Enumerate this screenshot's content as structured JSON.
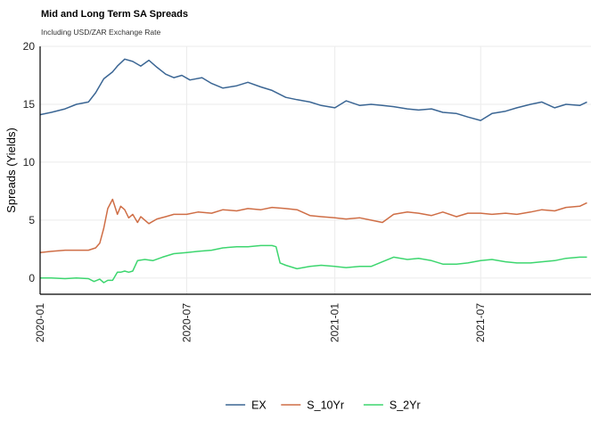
{
  "chart_data": {
    "type": "line",
    "title": "Mid and Long Term SA Spreads",
    "subtitle": "Including USD/ZAR Exchange Rate",
    "xlabel": "",
    "ylabel": "Spreads (Yields)",
    "xlim": [
      "2020-01-01",
      "2021-11-15"
    ],
    "ylim": [
      -1.4,
      20
    ],
    "x_ticks": [
      "2020-01",
      "2020-07",
      "2021-01",
      "2021-07"
    ],
    "y_ticks": [
      0,
      5,
      10,
      15,
      20
    ],
    "grid": true,
    "legend_position": "bottom",
    "series": [
      {
        "name": "EX",
        "color": "#3B6694",
        "x": [
          "2020-01-01",
          "2020-01-15",
          "2020-02-01",
          "2020-02-15",
          "2020-03-01",
          "2020-03-10",
          "2020-03-20",
          "2020-03-31",
          "2020-04-06",
          "2020-04-15",
          "2020-04-25",
          "2020-05-05",
          "2020-05-15",
          "2020-05-25",
          "2020-06-05",
          "2020-06-15",
          "2020-06-25",
          "2020-07-05",
          "2020-07-20",
          "2020-08-01",
          "2020-08-15",
          "2020-09-01",
          "2020-09-15",
          "2020-10-01",
          "2020-10-15",
          "2020-11-01",
          "2020-11-15",
          "2020-12-01",
          "2020-12-15",
          "2021-01-01",
          "2021-01-15",
          "2021-02-01",
          "2021-02-15",
          "2021-03-01",
          "2021-03-15",
          "2021-04-01",
          "2021-04-15",
          "2021-05-01",
          "2021-05-15",
          "2021-06-01",
          "2021-06-15",
          "2021-07-01",
          "2021-07-15",
          "2021-08-01",
          "2021-08-15",
          "2021-09-01",
          "2021-09-15",
          "2021-10-01",
          "2021-10-15",
          "2021-11-01",
          "2021-11-10"
        ],
        "values": [
          14.1,
          14.3,
          14.6,
          15.0,
          15.2,
          16.0,
          17.2,
          17.8,
          18.3,
          18.9,
          18.7,
          18.3,
          18.8,
          18.2,
          17.6,
          17.3,
          17.5,
          17.1,
          17.3,
          16.8,
          16.4,
          16.6,
          16.9,
          16.5,
          16.2,
          15.6,
          15.4,
          15.2,
          14.9,
          14.7,
          15.3,
          14.9,
          15.0,
          14.9,
          14.8,
          14.6,
          14.5,
          14.6,
          14.3,
          14.2,
          13.9,
          13.6,
          14.2,
          14.4,
          14.7,
          15.0,
          15.2,
          14.7,
          15.0,
          14.9,
          15.2
        ]
      },
      {
        "name": "S_10Yr",
        "color": "#CF6E46",
        "x": [
          "2020-01-01",
          "2020-01-15",
          "2020-02-01",
          "2020-02-15",
          "2020-03-01",
          "2020-03-10",
          "2020-03-15",
          "2020-03-20",
          "2020-03-25",
          "2020-03-31",
          "2020-04-06",
          "2020-04-10",
          "2020-04-15",
          "2020-04-20",
          "2020-04-25",
          "2020-05-01",
          "2020-05-05",
          "2020-05-15",
          "2020-05-25",
          "2020-06-05",
          "2020-06-15",
          "2020-07-01",
          "2020-07-15",
          "2020-08-01",
          "2020-08-15",
          "2020-09-01",
          "2020-09-15",
          "2020-10-01",
          "2020-10-15",
          "2020-11-01",
          "2020-11-15",
          "2020-12-01",
          "2020-12-15",
          "2021-01-01",
          "2021-01-15",
          "2021-02-01",
          "2021-02-15",
          "2021-03-01",
          "2021-03-15",
          "2021-04-01",
          "2021-04-15",
          "2021-05-01",
          "2021-05-15",
          "2021-06-01",
          "2021-06-15",
          "2021-07-01",
          "2021-07-15",
          "2021-08-01",
          "2021-08-15",
          "2021-09-01",
          "2021-09-15",
          "2021-10-01",
          "2021-10-15",
          "2021-11-01",
          "2021-11-10"
        ],
        "values": [
          2.2,
          2.3,
          2.4,
          2.4,
          2.4,
          2.6,
          3.0,
          4.3,
          6.0,
          6.8,
          5.5,
          6.2,
          5.9,
          5.2,
          5.5,
          4.8,
          5.3,
          4.7,
          5.1,
          5.3,
          5.5,
          5.5,
          5.7,
          5.6,
          5.9,
          5.8,
          6.0,
          5.9,
          6.1,
          6.0,
          5.9,
          5.4,
          5.3,
          5.2,
          5.1,
          5.2,
          5.0,
          4.8,
          5.5,
          5.7,
          5.6,
          5.4,
          5.7,
          5.3,
          5.6,
          5.6,
          5.5,
          5.6,
          5.5,
          5.7,
          5.9,
          5.8,
          6.1,
          6.2,
          6.5
        ]
      },
      {
        "name": "S_2Yr",
        "color": "#3DD66F",
        "x": [
          "2020-01-01",
          "2020-01-15",
          "2020-02-01",
          "2020-02-15",
          "2020-03-01",
          "2020-03-08",
          "2020-03-15",
          "2020-03-20",
          "2020-03-25",
          "2020-03-31",
          "2020-04-06",
          "2020-04-10",
          "2020-04-15",
          "2020-04-20",
          "2020-04-25",
          "2020-05-01",
          "2020-05-10",
          "2020-05-20",
          "2020-06-01",
          "2020-06-15",
          "2020-07-01",
          "2020-07-15",
          "2020-08-01",
          "2020-08-15",
          "2020-09-01",
          "2020-09-15",
          "2020-10-01",
          "2020-10-15",
          "2020-10-20",
          "2020-10-25",
          "2020-11-01",
          "2020-11-15",
          "2020-12-01",
          "2020-12-15",
          "2021-01-01",
          "2021-01-15",
          "2021-02-01",
          "2021-02-15",
          "2021-03-01",
          "2021-03-15",
          "2021-04-01",
          "2021-04-15",
          "2021-05-01",
          "2021-05-15",
          "2021-06-01",
          "2021-06-15",
          "2021-07-01",
          "2021-07-15",
          "2021-08-01",
          "2021-08-15",
          "2021-09-01",
          "2021-09-15",
          "2021-10-01",
          "2021-10-15",
          "2021-11-01",
          "2021-11-10"
        ],
        "values": [
          0.0,
          0.0,
          -0.05,
          0.0,
          -0.05,
          -0.3,
          -0.1,
          -0.4,
          -0.2,
          -0.2,
          0.5,
          0.5,
          0.6,
          0.5,
          0.6,
          1.5,
          1.6,
          1.5,
          1.8,
          2.1,
          2.2,
          2.3,
          2.4,
          2.6,
          2.7,
          2.7,
          2.8,
          2.8,
          2.7,
          1.3,
          1.1,
          0.8,
          1.0,
          1.1,
          1.0,
          0.9,
          1.0,
          1.0,
          1.4,
          1.8,
          1.6,
          1.7,
          1.5,
          1.2,
          1.2,
          1.3,
          1.5,
          1.6,
          1.4,
          1.3,
          1.3,
          1.4,
          1.5,
          1.7,
          1.8,
          1.8
        ]
      }
    ]
  }
}
